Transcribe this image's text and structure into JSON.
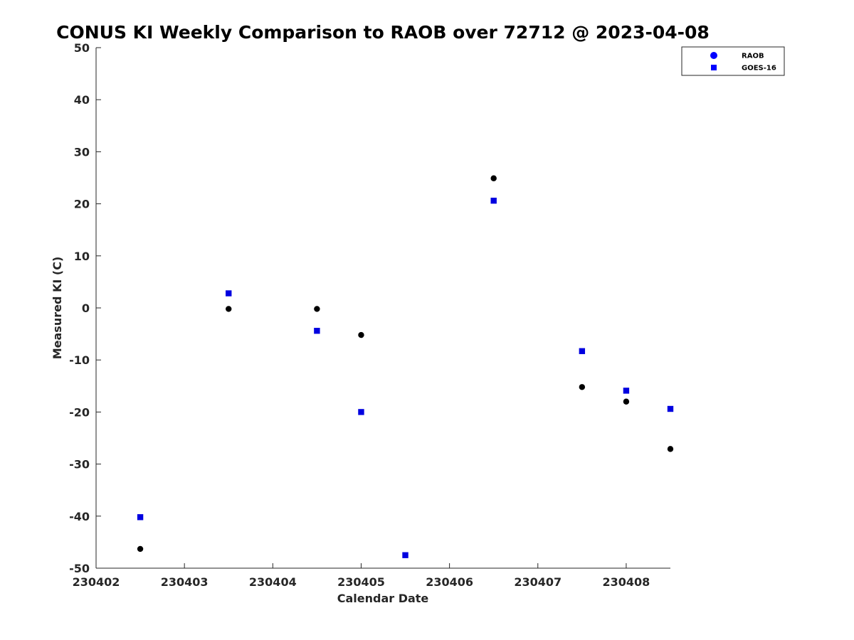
{
  "chart_data": {
    "type": "scatter",
    "title": "CONUS KI Weekly Comparison to RAOB over 72712 @ 2023-04-08",
    "xlabel": "Calendar Date",
    "ylabel": "Measured KI (C)",
    "xlim": [
      230402,
      230408.5
    ],
    "ylim": [
      -50,
      50
    ],
    "xticks": [
      230402,
      230403,
      230404,
      230405,
      230406,
      230407,
      230408
    ],
    "xtick_labels": [
      "230402",
      "230403",
      "230404",
      "230405",
      "230406",
      "230407",
      "230408"
    ],
    "yticks": [
      50,
      40,
      30,
      20,
      10,
      0,
      -10,
      -20,
      -30,
      -40,
      -50
    ],
    "ytick_labels": [
      "50",
      "40",
      "30",
      "20",
      "10",
      "0",
      "-10",
      "-20",
      "-30",
      "-40",
      "-50"
    ],
    "legend_position": "top-right",
    "series": [
      {
        "name": "RAOB",
        "marker": "circle",
        "color": "#000000",
        "legend_color": "#0000ff",
        "points": [
          {
            "x": 230402.5,
            "y": -46.3
          },
          {
            "x": 230403.5,
            "y": -0.2
          },
          {
            "x": 230404.5,
            "y": -0.2
          },
          {
            "x": 230405.0,
            "y": -5.2
          },
          {
            "x": 230406.5,
            "y": 24.9
          },
          {
            "x": 230407.5,
            "y": -15.2
          },
          {
            "x": 230408.0,
            "y": -18.0
          },
          {
            "x": 230408.5,
            "y": -27.1
          }
        ]
      },
      {
        "name": "GOES-16",
        "marker": "square",
        "color": "#0000e0",
        "legend_color": "#0000ff",
        "points": [
          {
            "x": 230402.5,
            "y": -40.2
          },
          {
            "x": 230403.5,
            "y": 2.8
          },
          {
            "x": 230404.5,
            "y": -4.4
          },
          {
            "x": 230405.0,
            "y": -20.0
          },
          {
            "x": 230405.5,
            "y": -47.5
          },
          {
            "x": 230406.5,
            "y": 20.6
          },
          {
            "x": 230407.5,
            "y": -8.3
          },
          {
            "x": 230408.0,
            "y": -15.9
          },
          {
            "x": 230408.5,
            "y": -19.4
          }
        ]
      }
    ]
  }
}
